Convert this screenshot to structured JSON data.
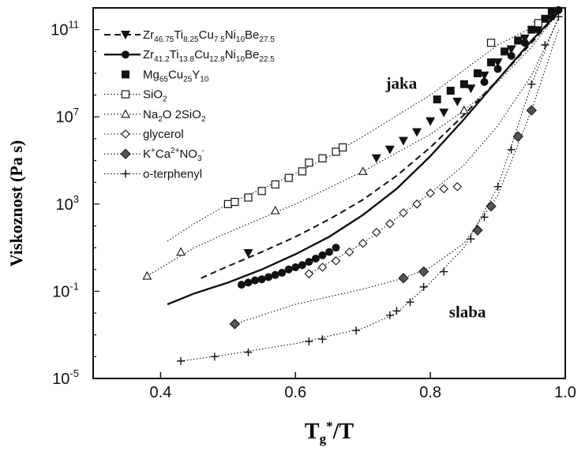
{
  "chart_data": {
    "type": "scatter",
    "title": "",
    "xlabel": {
      "base": "T",
      "sub": "g",
      "sup": "*",
      "tail": "/T"
    },
    "ylabel": "Viskoznost (Pa s)",
    "xlim": [
      0.3,
      1.0
    ],
    "ylim_log10": [
      -5,
      12
    ],
    "x_ticks": [
      {
        "value": 0.4,
        "label": "0.4"
      },
      {
        "value": 0.6,
        "label": "0.6"
      },
      {
        "value": 0.8,
        "label": "0.8"
      },
      {
        "value": 1.0,
        "label": "1.0"
      }
    ],
    "y_ticks": [
      {
        "exp": -5,
        "base": "10",
        "sup": "-5"
      },
      {
        "exp": -1,
        "base": "10",
        "sup": "-1"
      },
      {
        "exp": 3,
        "base": "10",
        "sup": "3"
      },
      {
        "exp": 7,
        "base": "10",
        "sup": "7"
      },
      {
        "exp": 11,
        "base": "10",
        "sup": "11"
      }
    ],
    "grid": false,
    "legend_position": "top-left",
    "annotations": [
      {
        "text": "jaka",
        "x": 0.757,
        "log10_y": 8.3
      },
      {
        "text": "slaba",
        "x": 0.855,
        "log10_y": -2.2
      }
    ],
    "series": [
      {
        "legend": [
          {
            "t": "Zr"
          },
          {
            "t": "46.75",
            "s": "sub"
          },
          {
            "t": "Ti"
          },
          {
            "t": "8.25",
            "s": "sub"
          },
          {
            "t": "Cu"
          },
          {
            "t": "7.5",
            "s": "sub"
          },
          {
            "t": "Ni"
          },
          {
            "t": "10",
            "s": "sub"
          },
          {
            "t": "Be"
          },
          {
            "t": "27.5",
            "s": "sub"
          }
        ],
        "marker": "triangle-down-filled",
        "line": "dashed",
        "points": [
          [
            0.53,
            0.75
          ],
          [
            0.72,
            5.1
          ],
          [
            0.74,
            5.5
          ],
          [
            0.76,
            5.9
          ],
          [
            0.78,
            6.3
          ],
          [
            0.8,
            6.8
          ],
          [
            0.82,
            7.2
          ],
          [
            0.84,
            7.7
          ],
          [
            0.86,
            8.3
          ],
          [
            0.88,
            8.9
          ],
          [
            0.9,
            9.5
          ],
          [
            0.92,
            10.1
          ],
          [
            0.94,
            10.6
          ],
          [
            0.96,
            11.2
          ]
        ],
        "curve": [
          [
            0.46,
            -0.4
          ],
          [
            0.5,
            0.15
          ],
          [
            0.55,
            0.8
          ],
          [
            0.6,
            1.5
          ],
          [
            0.65,
            2.3
          ],
          [
            0.7,
            3.2
          ],
          [
            0.75,
            4.3
          ],
          [
            0.8,
            5.6
          ],
          [
            0.85,
            7.1
          ],
          [
            0.9,
            8.7
          ],
          [
            0.95,
            10.4
          ],
          [
            0.99,
            11.8
          ]
        ]
      },
      {
        "legend": [
          {
            "t": "Zr"
          },
          {
            "t": "41.2",
            "s": "sub"
          },
          {
            "t": "Ti"
          },
          {
            "t": "13.8",
            "s": "sub"
          },
          {
            "t": "Cu"
          },
          {
            "t": "12.8",
            "s": "sub"
          },
          {
            "t": "Ni"
          },
          {
            "t": "10",
            "s": "sub"
          },
          {
            "t": "Be"
          },
          {
            "t": "22.5",
            "s": "sub"
          }
        ],
        "marker": "circle-filled",
        "line": "solid",
        "points": [
          [
            0.52,
            -0.7
          ],
          [
            0.53,
            -0.6
          ],
          [
            0.54,
            -0.5
          ],
          [
            0.55,
            -0.45
          ],
          [
            0.56,
            -0.35
          ],
          [
            0.57,
            -0.25
          ],
          [
            0.58,
            -0.15
          ],
          [
            0.59,
            0.0
          ],
          [
            0.6,
            0.1
          ],
          [
            0.61,
            0.2
          ],
          [
            0.62,
            0.35
          ],
          [
            0.63,
            0.5
          ],
          [
            0.64,
            0.65
          ],
          [
            0.65,
            0.8
          ],
          [
            0.66,
            1.0
          ],
          [
            0.88,
            8.6
          ],
          [
            0.9,
            9.2
          ],
          [
            0.92,
            9.8
          ],
          [
            0.94,
            10.4
          ],
          [
            0.96,
            11.0
          ],
          [
            0.98,
            11.6
          ],
          [
            0.99,
            11.9
          ]
        ],
        "curve": [
          [
            0.41,
            -1.6
          ],
          [
            0.45,
            -1.1
          ],
          [
            0.5,
            -0.6
          ],
          [
            0.55,
            0.0
          ],
          [
            0.6,
            0.7
          ],
          [
            0.65,
            1.5
          ],
          [
            0.7,
            2.5
          ],
          [
            0.75,
            3.7
          ],
          [
            0.8,
            5.2
          ],
          [
            0.85,
            6.9
          ],
          [
            0.9,
            8.7
          ],
          [
            0.95,
            10.5
          ],
          [
            0.99,
            11.8
          ]
        ]
      },
      {
        "legend": [
          {
            "t": "Mg"
          },
          {
            "t": "65",
            "s": "sub"
          },
          {
            "t": "Cu"
          },
          {
            "t": "25",
            "s": "sub"
          },
          {
            "t": "Y"
          },
          {
            "t": "10",
            "s": "sub"
          }
        ],
        "marker": "square-filled",
        "line": "none",
        "points": [
          [
            0.81,
            7.8
          ],
          [
            0.83,
            8.2
          ],
          [
            0.85,
            8.5
          ],
          [
            0.87,
            9.0
          ],
          [
            0.89,
            9.5
          ],
          [
            0.91,
            10.0
          ],
          [
            0.93,
            10.5
          ],
          [
            0.95,
            11.0
          ],
          [
            0.97,
            11.5
          ],
          [
            0.98,
            11.8
          ]
        ]
      },
      {
        "legend": [
          {
            "t": "SiO"
          },
          {
            "t": "2",
            "s": "sub"
          }
        ],
        "marker": "square-open",
        "line": "dotted",
        "points": [
          [
            0.5,
            3.0
          ],
          [
            0.51,
            3.1
          ],
          [
            0.53,
            3.3
          ],
          [
            0.55,
            3.6
          ],
          [
            0.57,
            3.9
          ],
          [
            0.59,
            4.2
          ],
          [
            0.61,
            4.5
          ],
          [
            0.62,
            4.9
          ],
          [
            0.64,
            5.1
          ],
          [
            0.66,
            5.4
          ],
          [
            0.67,
            5.6
          ],
          [
            0.89,
            10.4
          ],
          [
            0.96,
            11.3
          ]
        ],
        "curve": [
          [
            0.41,
            1.3
          ],
          [
            0.45,
            2.1
          ],
          [
            0.5,
            3.0
          ],
          [
            0.55,
            3.7
          ],
          [
            0.6,
            4.4
          ],
          [
            0.65,
            5.2
          ],
          [
            0.7,
            6.1
          ],
          [
            0.8,
            8.0
          ],
          [
            0.9,
            10.3
          ],
          [
            0.97,
            11.4
          ]
        ]
      },
      {
        "legend": [
          {
            "t": "Na"
          },
          {
            "t": "2",
            "s": "sub"
          },
          {
            "t": "O 2SiO"
          },
          {
            "t": "2",
            "s": "sub"
          }
        ],
        "marker": "triangle-up-open",
        "line": "dotted",
        "points": [
          [
            0.38,
            -0.3
          ],
          [
            0.43,
            0.8
          ],
          [
            0.57,
            2.7
          ],
          [
            0.7,
            4.5
          ],
          [
            0.85,
            7.3
          ]
        ],
        "curve": [
          [
            0.38,
            -0.3
          ],
          [
            0.45,
            1.0
          ],
          [
            0.5,
            1.7
          ],
          [
            0.6,
            3.0
          ],
          [
            0.7,
            4.5
          ],
          [
            0.8,
            6.2
          ],
          [
            0.85,
            7.3
          ],
          [
            0.9,
            8.6
          ],
          [
            0.95,
            10.2
          ],
          [
            0.99,
            11.8
          ]
        ]
      },
      {
        "legend": [
          {
            "t": "glycerol"
          }
        ],
        "marker": "diamond-open",
        "line": "dotted",
        "points": [
          [
            0.62,
            -0.2
          ],
          [
            0.64,
            0.1
          ],
          [
            0.66,
            0.4
          ],
          [
            0.68,
            0.8
          ],
          [
            0.7,
            1.2
          ],
          [
            0.72,
            1.7
          ],
          [
            0.74,
            2.1
          ],
          [
            0.76,
            2.6
          ],
          [
            0.78,
            3.0
          ],
          [
            0.8,
            3.5
          ],
          [
            0.82,
            3.7
          ],
          [
            0.84,
            3.8
          ]
        ],
        "curve": [
          [
            0.62,
            -0.2
          ],
          [
            0.7,
            1.2
          ],
          [
            0.8,
            3.5
          ],
          [
            0.85,
            4.8
          ],
          [
            0.9,
            6.6
          ],
          [
            0.95,
            8.9
          ],
          [
            0.99,
            11.5
          ]
        ]
      },
      {
        "legend": [
          {
            "t": "K"
          },
          {
            "t": "+",
            "s": "sup"
          },
          {
            "t": "Ca"
          },
          {
            "t": "2+",
            "s": "sup"
          },
          {
            "t": "NO"
          },
          {
            "t": "3",
            "s": "sub"
          },
          {
            "t": "-",
            "s": "sup"
          }
        ],
        "marker": "diamond-filled",
        "line": "dotted",
        "points": [
          [
            0.51,
            -2.5
          ],
          [
            0.76,
            -0.4
          ],
          [
            0.79,
            -0.1
          ],
          [
            0.87,
            1.8
          ],
          [
            0.89,
            2.9
          ],
          [
            0.93,
            6.1
          ],
          [
            0.95,
            7.3
          ]
        ],
        "curve": [
          [
            0.51,
            -2.5
          ],
          [
            0.6,
            -1.6
          ],
          [
            0.7,
            -0.9
          ],
          [
            0.76,
            -0.4
          ],
          [
            0.8,
            0.1
          ],
          [
            0.85,
            1.2
          ],
          [
            0.9,
            3.4
          ],
          [
            0.95,
            7.3
          ],
          [
            0.99,
            11.0
          ]
        ]
      },
      {
        "legend": [
          {
            "t": "o-terphenyl"
          }
        ],
        "marker": "plus",
        "line": "dotted",
        "points": [
          [
            0.43,
            -4.2
          ],
          [
            0.48,
            -4.0
          ],
          [
            0.53,
            -3.8
          ],
          [
            0.62,
            -3.3
          ],
          [
            0.64,
            -3.2
          ],
          [
            0.69,
            -2.8
          ],
          [
            0.74,
            -2.1
          ],
          [
            0.75,
            -1.9
          ],
          [
            0.77,
            -1.5
          ],
          [
            0.79,
            -0.8
          ],
          [
            0.82,
            -0.1
          ],
          [
            0.86,
            1.4
          ],
          [
            0.88,
            2.4
          ],
          [
            0.9,
            3.8
          ],
          [
            0.92,
            5.5
          ],
          [
            0.95,
            8.5
          ],
          [
            0.97,
            10.3
          ],
          [
            0.99,
            11.6
          ]
        ],
        "curve": [
          [
            0.43,
            -4.2
          ],
          [
            0.5,
            -3.9
          ],
          [
            0.6,
            -3.4
          ],
          [
            0.7,
            -2.7
          ],
          [
            0.75,
            -2.0
          ],
          [
            0.8,
            -0.6
          ],
          [
            0.85,
            1.0
          ],
          [
            0.9,
            3.8
          ],
          [
            0.95,
            8.5
          ],
          [
            0.99,
            11.6
          ]
        ]
      }
    ]
  }
}
